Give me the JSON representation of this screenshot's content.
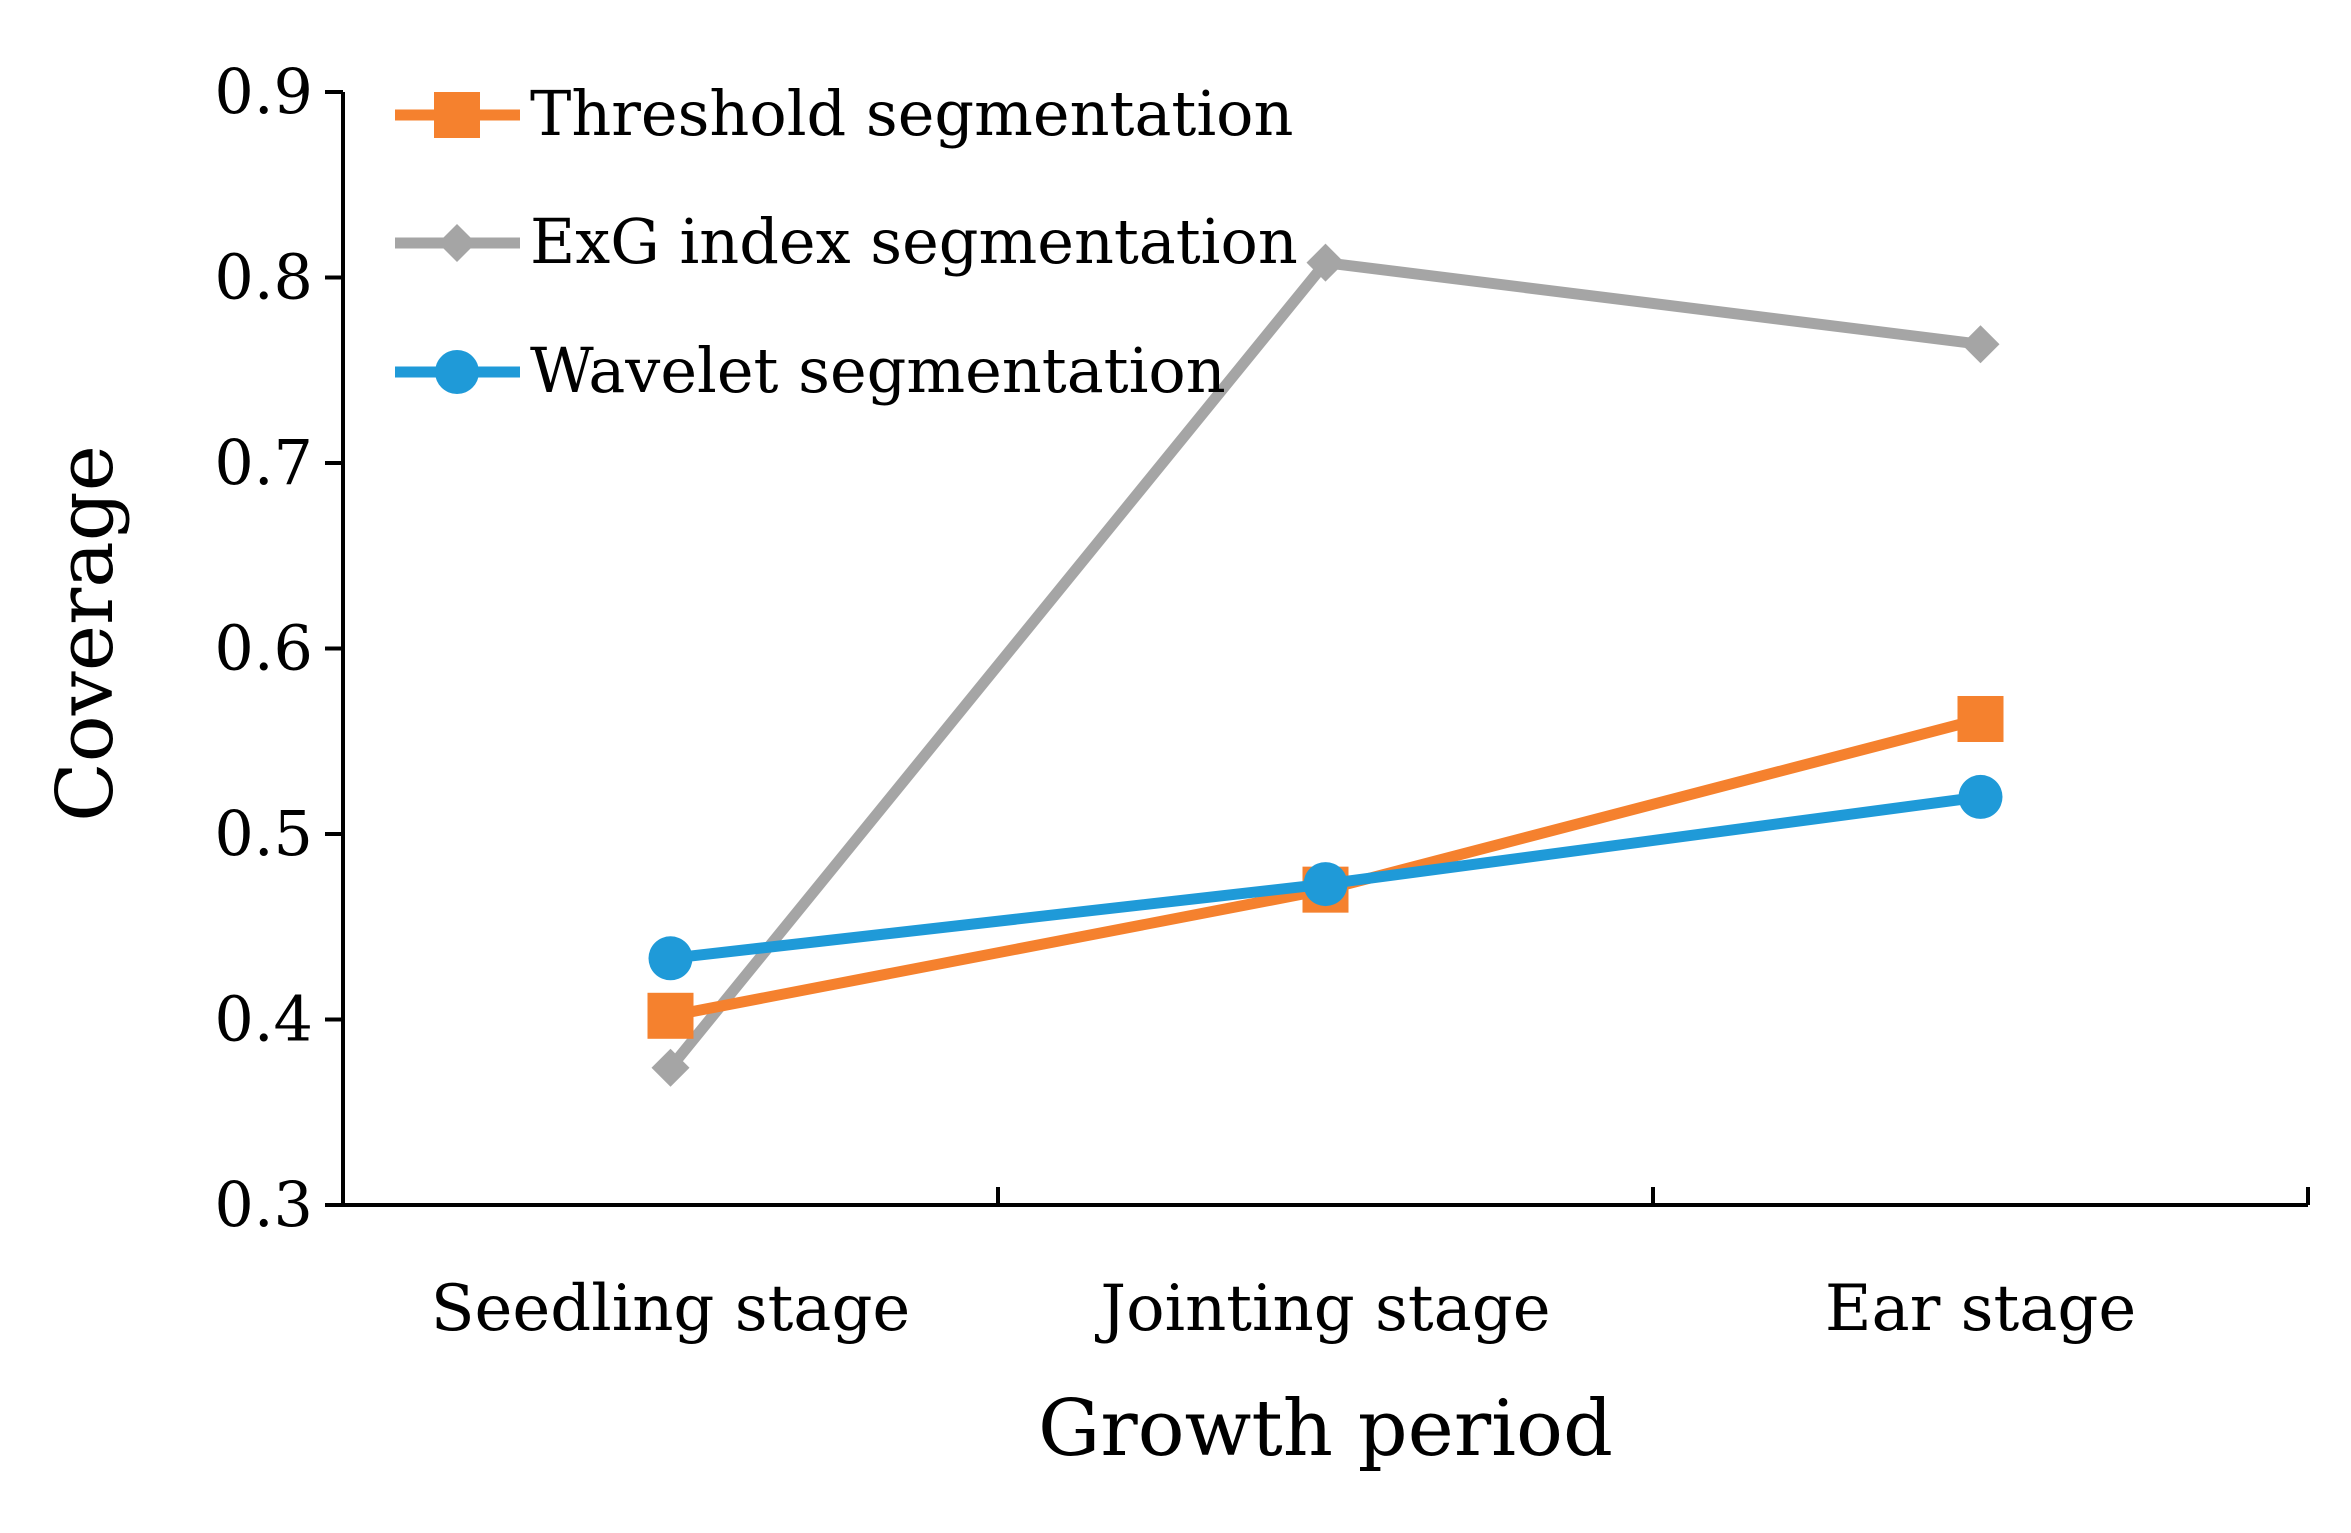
{
  "chart_data": {
    "type": "line",
    "title": "",
    "xlabel": "Growth period",
    "ylabel": "Coverage",
    "categories": [
      "Seedling stage",
      "Jointing stage",
      "Ear stage"
    ],
    "ylim": [
      0.3,
      0.9
    ],
    "yticks": [
      "0.3",
      "0.4",
      "0.5",
      "0.6",
      "0.7",
      "0.8",
      "0.9"
    ],
    "grid": false,
    "legend_position": "top-left",
    "series": [
      {
        "name": "Threshold segmentation",
        "values": [
          0.402,
          0.47,
          0.562
        ],
        "color": "#F5812E",
        "marker": "square"
      },
      {
        "name": "ExG index segmentation",
        "values": [
          0.374,
          0.808,
          0.764
        ],
        "color": "#A5A5A5",
        "marker": "diamond"
      },
      {
        "name": "Wavelet segmentation",
        "values": [
          0.433,
          0.473,
          0.52
        ],
        "color": "#1F9AD8",
        "marker": "circle"
      }
    ]
  }
}
